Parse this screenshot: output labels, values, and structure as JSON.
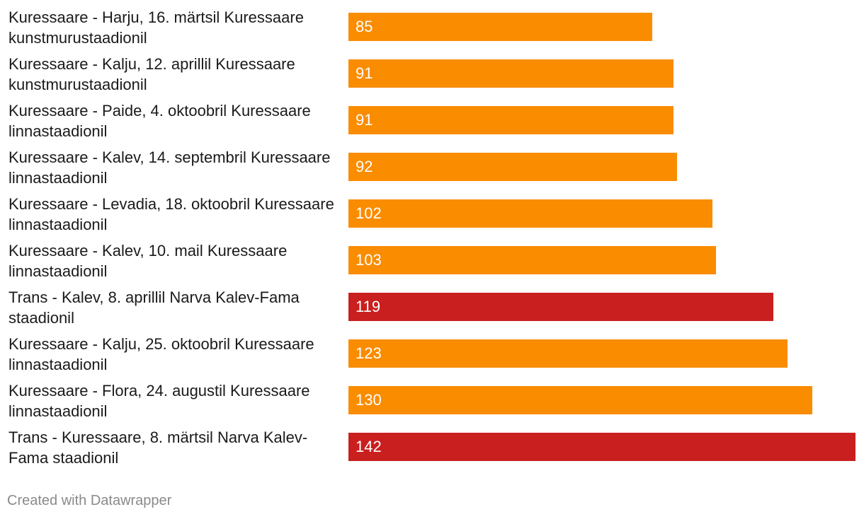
{
  "chart_data": {
    "type": "bar",
    "orientation": "horizontal",
    "title": "",
    "xlabel": "",
    "ylabel": "",
    "xlim": [
      0,
      142
    ],
    "grid": false,
    "value_labels": "inside-left",
    "colors": {
      "default": "#FA8C00",
      "highlight": "#C91F1F"
    },
    "categories": [
      "Kuressaare - Harju, 16. märtsil Kuressaare kunstmurustaadionil",
      "Kuressaare - Kalju, 12. aprillil Kuressaare kunstmurustaadionil",
      "Kuressaare - Paide, 4. oktoobril Kuressaare linnastaadionil",
      "Kuressaare - Kalev, 14. septembril Kuressaare linnastaadionil",
      "Kuressaare - Levadia, 18. oktoobril Kuressaare linnastaadionil",
      "Kuressaare - Kalev, 10. mail Kuressaare linnastaadionil",
      "Trans - Kalev, 8. aprillil Narva Kalev-Fama staadionil",
      "Kuressaare - Kalju, 25. oktoobril Kuressaare linnastaadionil",
      "Kuressaare - Flora, 24. augustil Kuressaare linnastaadionil",
      "Trans - Kuressaare, 8. märtsil Narva Kalev-Fama staadionil"
    ],
    "values": [
      85,
      91,
      91,
      92,
      102,
      103,
      119,
      123,
      130,
      142
    ],
    "highlighted": [
      false,
      false,
      false,
      false,
      false,
      false,
      true,
      false,
      false,
      true
    ]
  },
  "footer": {
    "credit": "Created with Datawrapper"
  }
}
